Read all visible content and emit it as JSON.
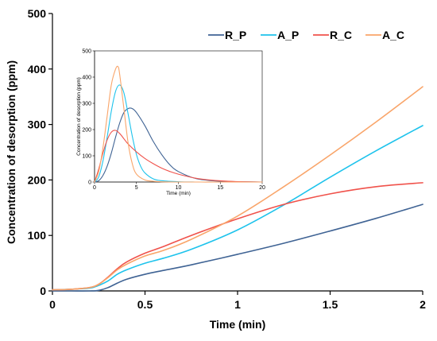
{
  "chart_data": [
    {
      "type": "line",
      "role": "main",
      "xlabel": "Time (min)",
      "ylabel": "Concentration of desorption (ppm)",
      "xlim": [
        0,
        2
      ],
      "ylim": [
        0,
        500
      ],
      "xticks": [
        0,
        0.5,
        1,
        1.5,
        2
      ],
      "xtick_labels": [
        "0",
        "0.5",
        "1",
        "1.5",
        "2"
      ],
      "yticks": [
        0,
        100,
        200,
        300,
        400,
        500
      ],
      "ytick_labels": [
        "0",
        "100",
        "200",
        "300",
        "400",
        "500"
      ],
      "grid": false,
      "legend_position": "top-right",
      "series": [
        {
          "name": "R_P",
          "color": "#3f6394",
          "x": [
            0,
            0.1,
            0.2,
            0.25,
            0.3,
            0.35,
            0.4,
            0.5,
            0.6,
            0.75,
            1.0,
            1.25,
            1.5,
            1.75,
            2.0
          ],
          "y": [
            0,
            0,
            0,
            1,
            6,
            14,
            21,
            30,
            37,
            47,
            66,
            86,
            108,
            131,
            156
          ]
        },
        {
          "name": "A_P",
          "color": "#1ec3ec",
          "x": [
            0,
            0.1,
            0.2,
            0.25,
            0.3,
            0.35,
            0.4,
            0.5,
            0.6,
            0.75,
            1.0,
            1.25,
            1.5,
            1.75,
            2.0
          ],
          "y": [
            2,
            3,
            5,
            10,
            18,
            30,
            38,
            50,
            59,
            75,
            110,
            155,
            205,
            253,
            298
          ]
        },
        {
          "name": "R_C",
          "color": "#f0524b",
          "x": [
            0,
            0.1,
            0.2,
            0.25,
            0.3,
            0.35,
            0.4,
            0.5,
            0.6,
            0.75,
            1.0,
            1.25,
            1.5,
            1.75,
            2.0
          ],
          "y": [
            2,
            3,
            6,
            12,
            25,
            40,
            52,
            68,
            80,
            100,
            130,
            156,
            175,
            188,
            195
          ]
        },
        {
          "name": "A_C",
          "color": "#f9a56a",
          "x": [
            0,
            0.1,
            0.2,
            0.25,
            0.3,
            0.35,
            0.4,
            0.5,
            0.6,
            0.75,
            1.0,
            1.25,
            1.5,
            1.75,
            2.0
          ],
          "y": [
            2,
            3,
            6,
            12,
            24,
            38,
            48,
            63,
            73,
            93,
            135,
            188,
            245,
            305,
            368
          ]
        }
      ]
    },
    {
      "type": "line",
      "role": "inset",
      "xlabel": "Time (min)",
      "ylabel": "Concentration of desorption (ppm)",
      "xlim": [
        0,
        20
      ],
      "ylim": [
        0,
        500
      ],
      "xticks": [
        0,
        5,
        10,
        15,
        20
      ],
      "xtick_labels": [
        "0",
        "5",
        "10",
        "15",
        "20"
      ],
      "yticks": [
        0,
        100,
        200,
        300,
        400,
        500
      ],
      "ytick_labels": [
        "0",
        "100",
        "200",
        "300",
        "400",
        "500"
      ],
      "grid": false,
      "series": [
        {
          "name": "R_P",
          "color": "#3f6394",
          "x": [
            0,
            0.5,
            1,
            1.5,
            2,
            2.5,
            3,
            3.5,
            4,
            4.5,
            5,
            6,
            7,
            8,
            9,
            10,
            12,
            14,
            16,
            18,
            20
          ],
          "y": [
            0,
            5,
            25,
            60,
            110,
            170,
            225,
            265,
            280,
            280,
            265,
            215,
            155,
            105,
            65,
            40,
            14,
            5,
            2,
            1,
            0
          ]
        },
        {
          "name": "A_P",
          "color": "#1ec3ec",
          "x": [
            0,
            0.5,
            1,
            1.5,
            2,
            2.5,
            3,
            3.5,
            4,
            4.5,
            5,
            5.5,
            6,
            7,
            8,
            10,
            12,
            15,
            20
          ],
          "y": [
            0,
            20,
            80,
            170,
            270,
            345,
            370,
            340,
            260,
            175,
            105,
            60,
            35,
            12,
            5,
            1,
            0,
            0,
            0
          ]
        },
        {
          "name": "R_C",
          "color": "#f0524b",
          "x": [
            0,
            0.5,
            1,
            1.5,
            2,
            2.5,
            3,
            3.5,
            4,
            5,
            6,
            7,
            8,
            9,
            10,
            12,
            14,
            16,
            18,
            20
          ],
          "y": [
            0,
            50,
            110,
            160,
            190,
            197,
            185,
            165,
            145,
            115,
            90,
            70,
            53,
            40,
            30,
            15,
            7,
            3,
            1,
            0
          ]
        },
        {
          "name": "A_C",
          "color": "#f9a56a",
          "x": [
            0,
            0.5,
            1,
            1.5,
            2,
            2.5,
            2.8,
            3,
            3.5,
            4,
            4.5,
            5,
            6,
            7,
            8,
            10,
            15,
            20
          ],
          "y": [
            0,
            40,
            130,
            250,
            370,
            430,
            440,
            410,
            280,
            150,
            70,
            30,
            8,
            3,
            1,
            0,
            0,
            0
          ]
        }
      ]
    }
  ]
}
